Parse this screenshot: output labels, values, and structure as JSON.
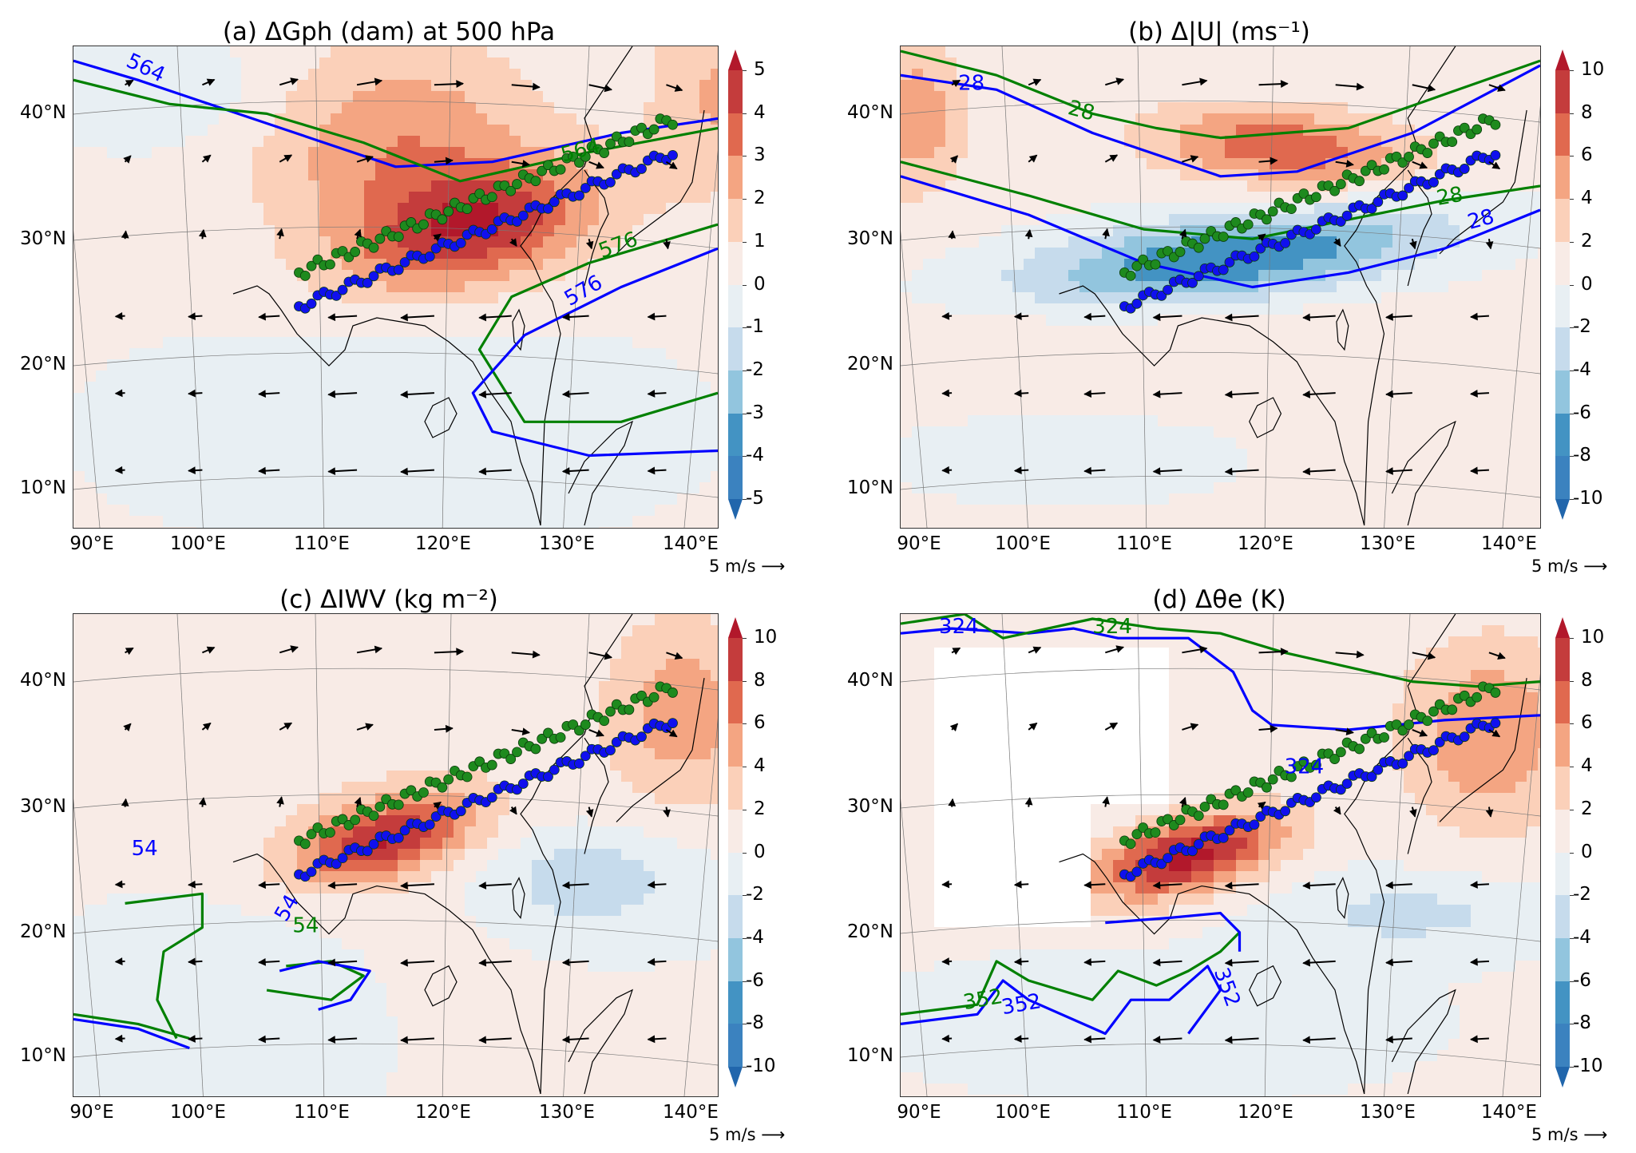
{
  "figure": {
    "quiver_key": "5 m/s",
    "lat_ticks": [
      "40°N",
      "30°N",
      "20°N",
      "10°N"
    ],
    "lon_ticks": [
      "90°E",
      "100°E",
      "110°E",
      "120°E",
      "130°E",
      "140°E"
    ]
  },
  "colors": {
    "scale": [
      "#2166ac",
      "#3b82bf",
      "#4393c3",
      "#92c5de",
      "#c6dbec",
      "#e8eff3",
      "#f8ebe6",
      "#fbd0b9",
      "#f4a582",
      "#e0694f",
      "#c43c3c",
      "#b2182b"
    ],
    "contour_blue": "#0000ff",
    "contour_green": "#008000"
  },
  "chart_data": [
    {
      "type": "heatmap",
      "panel": "a",
      "title_prefix": "(a) ΔGph (dam) at 500 hPa",
      "title": "(a) ΔGph (dam) at 500 hPa",
      "variable": "ΔGph",
      "units": "dam",
      "level": "500 hPa",
      "colorbar": {
        "ticks": [
          "5",
          "4",
          "3",
          "2",
          "1",
          "0",
          "-1",
          "-2",
          "-3",
          "-4",
          "-5"
        ],
        "range": [
          -5,
          5
        ],
        "extend": "both"
      },
      "contours": [
        {
          "color": "blue",
          "labels": [
            "564",
            "576"
          ]
        },
        {
          "color": "green",
          "labels": [
            "564",
            "576"
          ]
        }
      ],
      "xlim": [
        "89°E",
        "141°E"
      ],
      "ylim": [
        "7°N",
        "45°N"
      ],
      "max_anomaly_region": "Yangtze–southern Japan (~30°N, 110–135°E), +3 to +4"
    },
    {
      "type": "heatmap",
      "panel": "b",
      "title": "(b) Δ|U| (ms⁻¹)",
      "variable": "Δ|U|",
      "units": "ms-1",
      "colorbar": {
        "ticks": [
          "10",
          "8",
          "6",
          "4",
          "2",
          "0",
          "-2",
          "-4",
          "-6",
          "-8",
          "-10"
        ],
        "range": [
          -10,
          10
        ],
        "extend": "both"
      },
      "contours": [
        {
          "color": "blue",
          "labels": [
            "28",
            "28"
          ]
        },
        {
          "color": "green",
          "labels": [
            "28",
            "28"
          ]
        }
      ],
      "xlim": [
        "89°E",
        "141°E"
      ],
      "ylim": [
        "7°N",
        "45°N"
      ]
    },
    {
      "type": "heatmap",
      "panel": "c",
      "title": "(c) ΔIWV (kg m⁻²)",
      "variable": "ΔIWV",
      "units": "kg m-2",
      "colorbar": {
        "ticks": [
          "10",
          "8",
          "6",
          "4",
          "2",
          "0",
          "-2",
          "-4",
          "-6",
          "-8",
          "-10"
        ],
        "range": [
          -10,
          10
        ],
        "extend": "both"
      },
      "contours": [
        {
          "color": "blue",
          "labels": [
            "54",
            "54"
          ]
        },
        {
          "color": "green",
          "labels": [
            "54"
          ]
        }
      ],
      "xlim": [
        "89°E",
        "141°E"
      ],
      "ylim": [
        "7°N",
        "45°N"
      ]
    },
    {
      "type": "heatmap",
      "panel": "d",
      "title": "(d) Δθe (K)",
      "variable": "Δθe",
      "units": "K",
      "colorbar": {
        "ticks": [
          "10",
          "8",
          "6",
          "4",
          "2",
          "0",
          "-2",
          "-4",
          "-6",
          "-8",
          "-10"
        ],
        "range": [
          -10,
          10
        ],
        "extend": "both"
      },
      "contours": [
        {
          "color": "blue",
          "labels": [
            "324",
            "324",
            "352",
            "352",
            "352"
          ]
        },
        {
          "color": "green",
          "labels": [
            "324",
            "324",
            "352",
            "352",
            "352"
          ]
        }
      ],
      "xlim": [
        "89°E",
        "141°E"
      ],
      "ylim": [
        "7°N",
        "45°N"
      ]
    }
  ]
}
